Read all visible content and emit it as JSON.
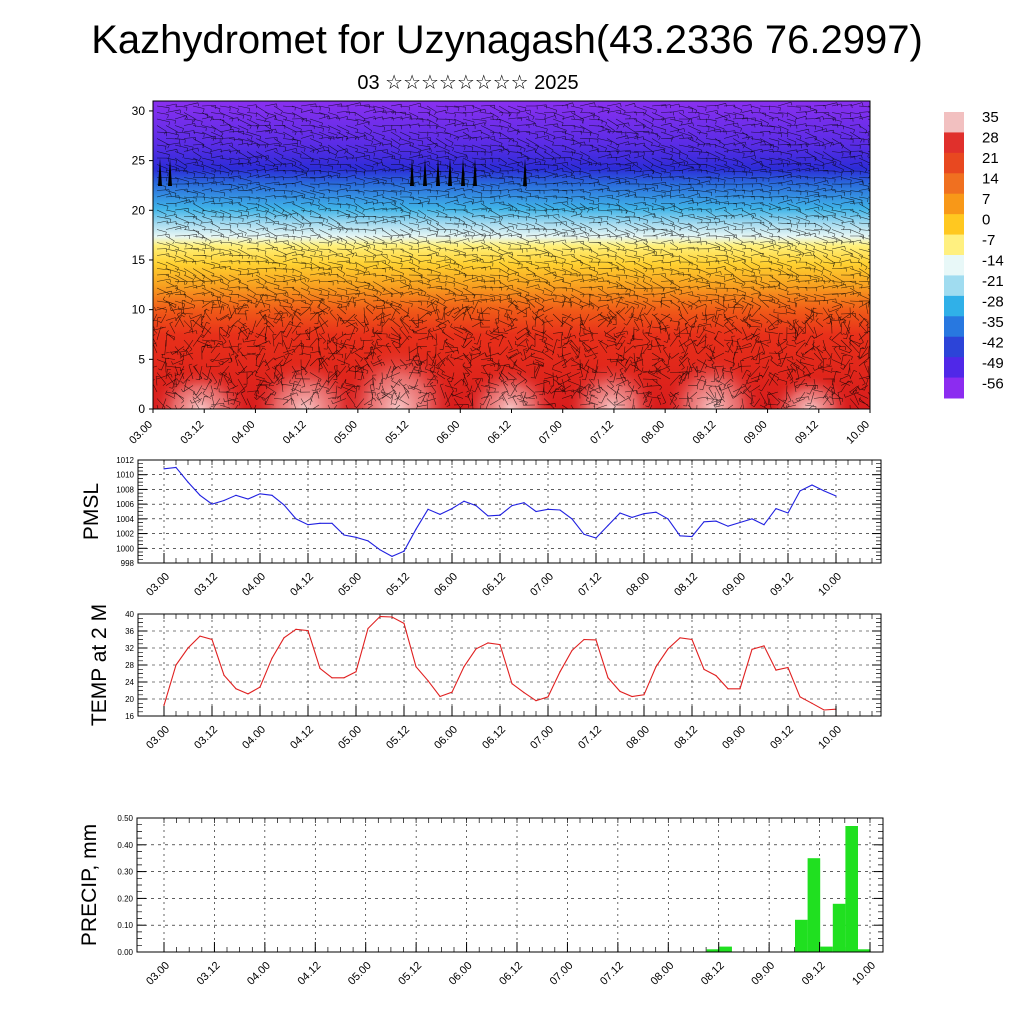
{
  "title": "Kazhydromet for Uzynagash(43.2336 76.2997)",
  "subtitle": "03 ☆☆☆☆☆☆☆☆ 2025",
  "time_ticks": [
    "03.00",
    "03.12",
    "04.00",
    "04.12",
    "05.00",
    "05.12",
    "06.00",
    "06.12",
    "07.00",
    "07.12",
    "08.00",
    "08.12",
    "09.00",
    "09.12",
    "10.00"
  ],
  "chart_data": [
    {
      "type": "heatmap",
      "description_text": "",
      "y_ticks": [
        "0",
        "5",
        "10",
        "15",
        "20",
        "25",
        "30"
      ],
      "ylim": [
        0,
        31
      ],
      "colorbar": {
        "labels": [
          "35",
          "28",
          "21",
          "14",
          "7",
          "0",
          "-7",
          "-14",
          "-21",
          "-28",
          "-35",
          "-42",
          "-49",
          "-56"
        ],
        "colors": [
          "#f2c0c0",
          "#e0302c",
          "#e84820",
          "#f07020",
          "#f89818",
          "#ffc820",
          "#fff080",
          "#e8f8f8",
          "#a0dcf0",
          "#30b0e8",
          "#2878e0",
          "#2c44d8",
          "#5028e8",
          "#8c2cf0"
        ]
      },
      "legend_position": "right"
    },
    {
      "type": "line",
      "ylabel": "PMSL",
      "y_ticks": [
        "1012",
        "1010",
        "1008",
        "1006",
        "1004",
        "1002",
        "1000",
        "998"
      ],
      "ylim": [
        998,
        1012
      ],
      "color": "#2020e0",
      "values": [
        1010.8,
        1011,
        1009,
        1007.2,
        1006,
        1006.5,
        1007.2,
        1006.7,
        1007.4,
        1007.2,
        1005.9,
        1004,
        1003.2,
        1003.4,
        1003.4,
        1001.8,
        1001.5,
        1001,
        999.8,
        998.9,
        999.6,
        1002.6,
        1005.3,
        1004.6,
        1005.4,
        1006.4,
        1005.8,
        1004.4,
        1004.5,
        1005.8,
        1006.2,
        1005,
        1005.3,
        1005.2,
        1004,
        1001.9,
        1001.4,
        1003.1,
        1004.8,
        1004.2,
        1004.7,
        1004.9,
        1004,
        1001.7,
        1001.6,
        1003.6,
        1003.7,
        1003,
        1003.5,
        1004,
        1003.2,
        1005.4,
        1004.8,
        1007.8,
        1008.6,
        1007.8,
        1007.1
      ]
    },
    {
      "type": "line",
      "ylabel": "TEMP at 2 M",
      "y_ticks": [
        "40",
        "36",
        "32",
        "28",
        "24",
        "20",
        "16"
      ],
      "ylim": [
        16,
        40
      ],
      "color": "#e02020",
      "values": [
        18.5,
        28,
        32,
        34.8,
        34,
        25.6,
        22.4,
        21.2,
        22.8,
        29.6,
        34.4,
        36.4,
        36.1,
        27.2,
        25,
        25,
        26.4,
        36.6,
        39.4,
        39.3,
        37.8,
        27.6,
        24.3,
        20.6,
        21.6,
        27.6,
        31.8,
        33.2,
        32.8,
        23.6,
        21.5,
        19.6,
        20.5,
        26.4,
        31.4,
        34,
        33.9,
        25,
        21.8,
        20.6,
        21,
        27.6,
        31.8,
        34.4,
        34,
        27,
        25.5,
        22.4,
        22.4,
        31.7,
        32.5,
        26.8,
        27.4,
        20.5,
        19,
        17.4,
        17.6
      ]
    },
    {
      "type": "bar",
      "ylabel": "PRECIP, mm",
      "y_ticks": [
        "0.50",
        "0.40",
        "0.30",
        "0.20",
        "0.10",
        "0.00"
      ],
      "ylim": [
        0,
        0.5
      ],
      "color": "#20e020",
      "values": [
        0,
        0,
        0,
        0,
        0,
        0,
        0,
        0,
        0,
        0,
        0,
        0,
        0,
        0,
        0,
        0,
        0,
        0,
        0,
        0,
        0,
        0,
        0,
        0,
        0,
        0,
        0,
        0,
        0,
        0,
        0,
        0,
        0,
        0,
        0,
        0,
        0,
        0,
        0,
        0,
        0,
        0,
        0,
        0,
        0.01,
        0.02,
        0,
        0,
        0,
        0,
        0,
        0.12,
        0.35,
        0.02,
        0.18,
        0.47,
        0.01
      ]
    }
  ]
}
